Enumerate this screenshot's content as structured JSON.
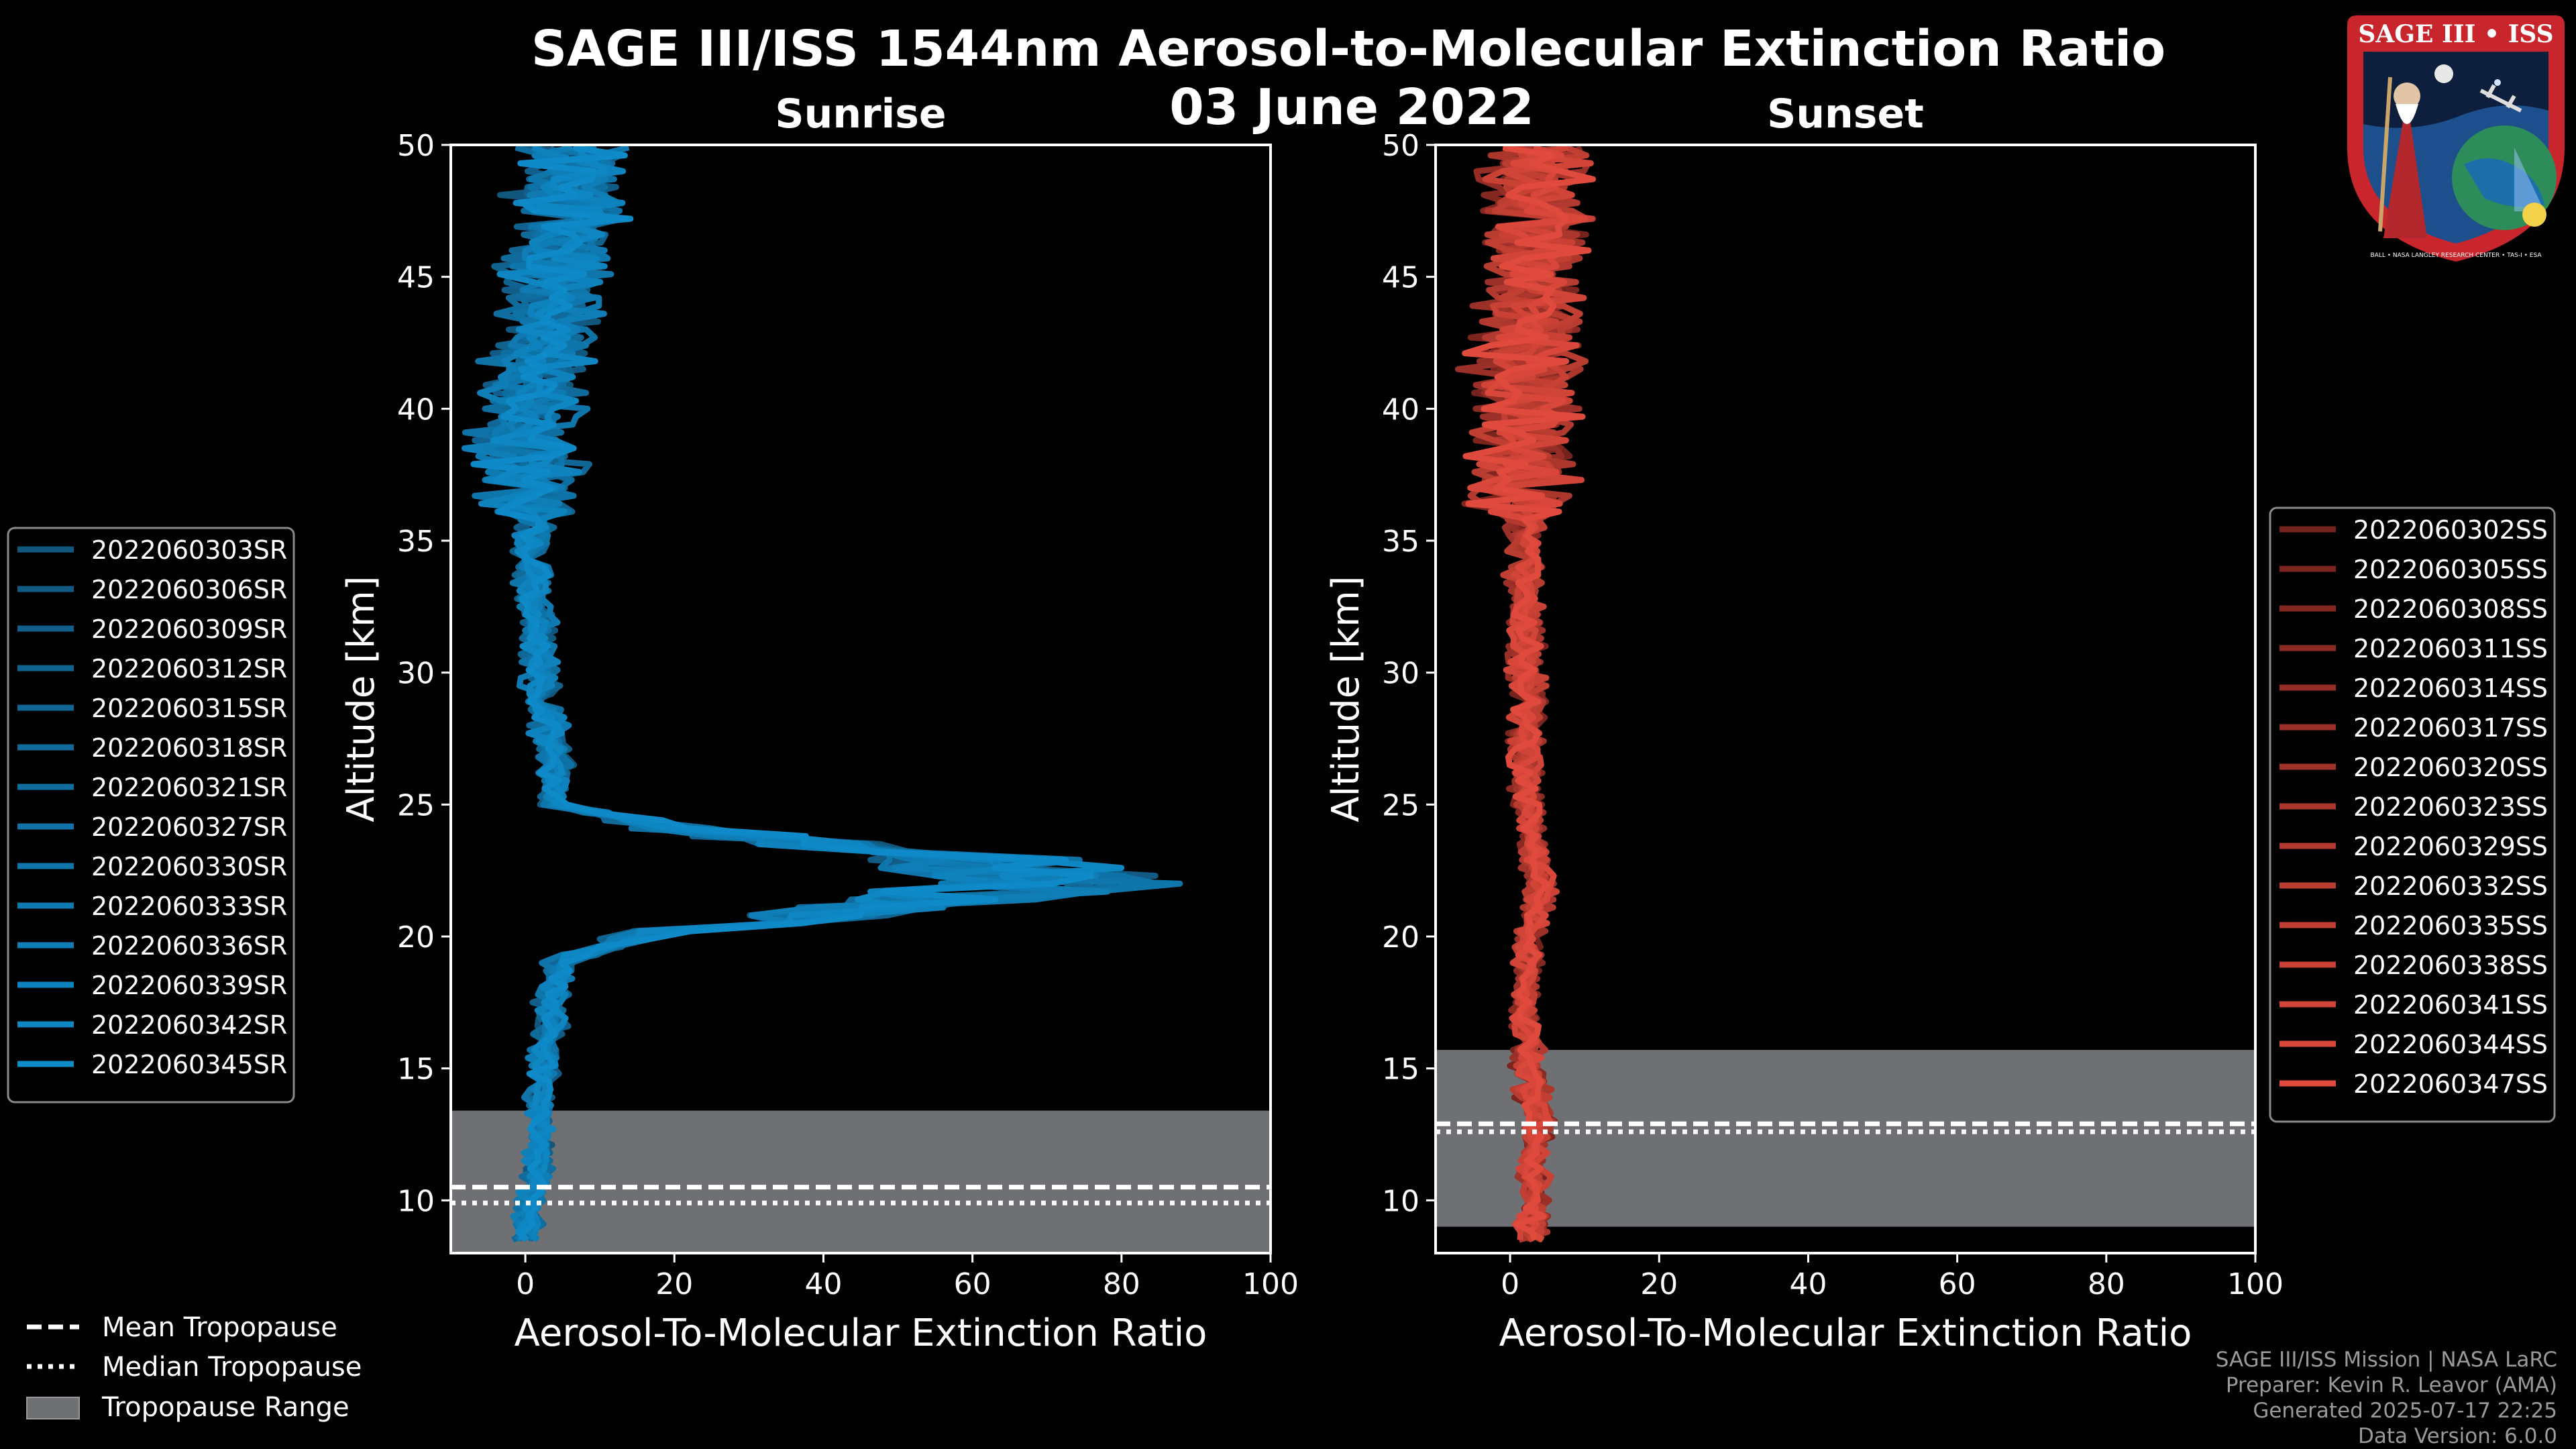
{
  "title_line1": "SAGE III/ISS 1544nm Aerosol-to-Molecular Extinction Ratio",
  "title_line2": "03 June 2022",
  "credits": {
    "line1": "SAGE III/ISS Mission | NASA LaRC",
    "line2": "Preparer: Kevin R. Leavor (AMA)",
    "line3": "Generated 2025-07-17 22:25",
    "line4": "Data Version: 6.0.0"
  },
  "logo": {
    "name": "SAGE III • ISS",
    "ring_text": "BALL • NASA LANGLEY RESEARCH CENTER • TAS-I • ESA"
  },
  "tropopause_legend": {
    "mean": "Mean Tropopause",
    "median": "Median Tropopause",
    "range": "Tropopause Range"
  },
  "colors": {
    "sunrise": "#0e8ac8",
    "sunset": "#e04a3c",
    "trop_fill": "#6e7074"
  },
  "chart_data": [
    {
      "type": "line",
      "title": "Sunrise",
      "xlabel": "Aerosol-To-Molecular Extinction Ratio",
      "ylabel": "Altitude [km]",
      "xlim": [
        -10,
        100
      ],
      "ylim": [
        8,
        50
      ],
      "xticks": [
        0,
        20,
        40,
        60,
        80,
        100
      ],
      "yticks": [
        10,
        15,
        20,
        25,
        30,
        35,
        40,
        45,
        50
      ],
      "tropopause": {
        "mean": 10.5,
        "median": 9.9,
        "min": 8.0,
        "max": 13.4
      },
      "series": [
        {
          "name": "2022060303SR"
        },
        {
          "name": "2022060306SR"
        },
        {
          "name": "2022060309SR"
        },
        {
          "name": "2022060312SR"
        },
        {
          "name": "2022060315SR"
        },
        {
          "name": "2022060318SR"
        },
        {
          "name": "2022060321SR"
        },
        {
          "name": "2022060327SR"
        },
        {
          "name": "2022060330SR"
        },
        {
          "name": "2022060333SR"
        },
        {
          "name": "2022060336SR"
        },
        {
          "name": "2022060339SR"
        },
        {
          "name": "2022060342SR"
        },
        {
          "name": "2022060345SR"
        }
      ],
      "profile": {
        "altitude": [
          8.5,
          10,
          12,
          14,
          16,
          18,
          19,
          20,
          21,
          22,
          23,
          24,
          25,
          27,
          30,
          33,
          36,
          39,
          42,
          45,
          48,
          50
        ],
        "ratio": [
          0,
          1,
          2,
          2,
          3,
          4,
          5,
          14,
          45,
          70,
          60,
          22,
          4,
          4,
          2,
          1,
          1,
          0,
          2,
          4,
          6,
          6
        ]
      }
    },
    {
      "type": "line",
      "title": "Sunset",
      "xlabel": "Aerosol-To-Molecular Extinction Ratio",
      "ylabel": "Altitude [km]",
      "xlim": [
        -10,
        100
      ],
      "ylim": [
        8,
        50
      ],
      "xticks": [
        0,
        20,
        40,
        60,
        80,
        100
      ],
      "yticks": [
        10,
        15,
        20,
        25,
        30,
        35,
        40,
        45,
        50
      ],
      "tropopause": {
        "mean": 12.9,
        "median": 12.6,
        "min": 9.0,
        "max": 15.7
      },
      "series": [
        {
          "name": "2022060302SS"
        },
        {
          "name": "2022060305SS"
        },
        {
          "name": "2022060308SS"
        },
        {
          "name": "2022060311SS"
        },
        {
          "name": "2022060314SS"
        },
        {
          "name": "2022060317SS"
        },
        {
          "name": "2022060320SS"
        },
        {
          "name": "2022060323SS"
        },
        {
          "name": "2022060329SS"
        },
        {
          "name": "2022060332SS"
        },
        {
          "name": "2022060335SS"
        },
        {
          "name": "2022060338SS"
        },
        {
          "name": "2022060341SS"
        },
        {
          "name": "2022060344SS"
        },
        {
          "name": "2022060347SS"
        }
      ],
      "profile": {
        "altitude": [
          8.5,
          10,
          12,
          13,
          14,
          16,
          18,
          20,
          22,
          24,
          26,
          30,
          34,
          38,
          42,
          46,
          50
        ],
        "ratio": [
          3,
          3,
          3,
          4,
          3,
          2,
          2,
          3,
          4,
          3,
          2,
          2,
          2,
          2,
          2,
          3,
          3
        ]
      }
    }
  ]
}
